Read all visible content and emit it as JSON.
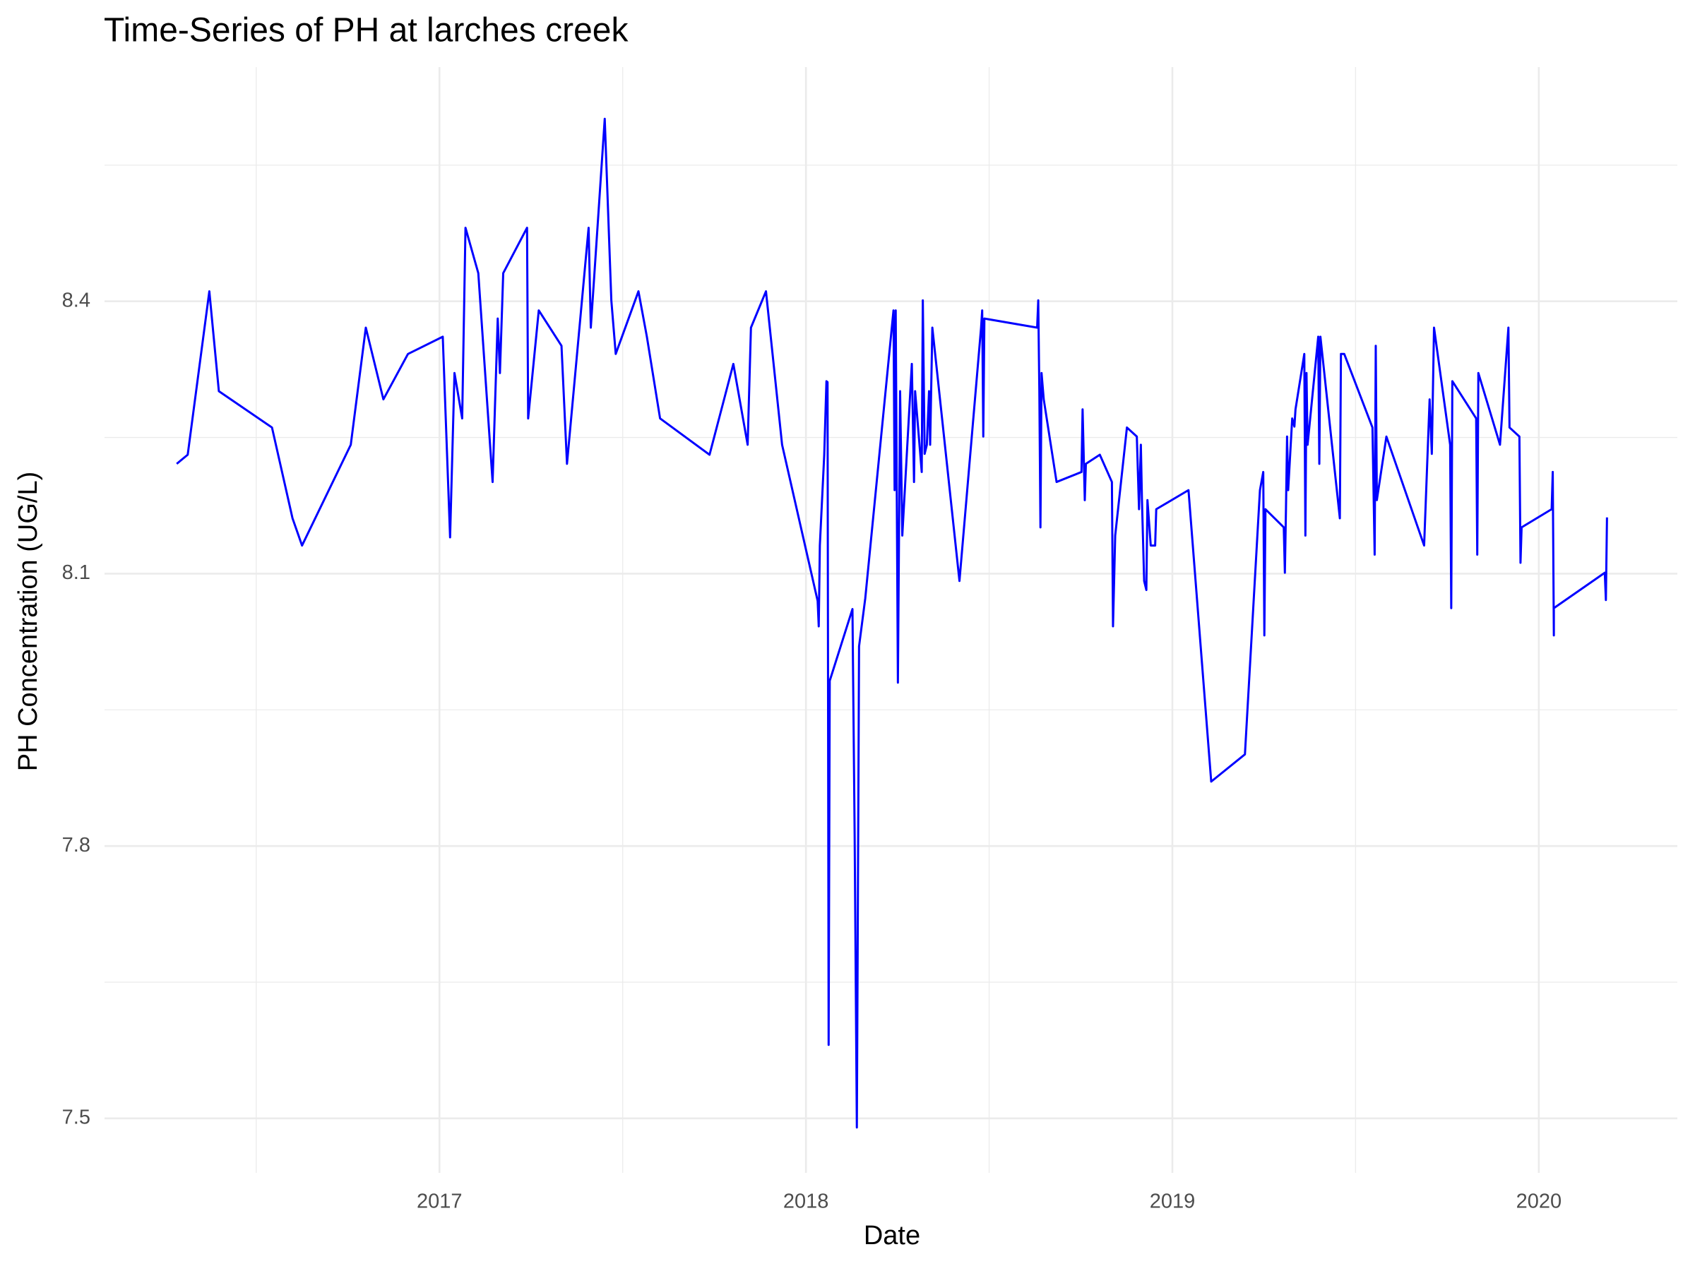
{
  "chart_data": {
    "type": "line",
    "title": "Time-Series of PH at larches creek",
    "x_label": "Date",
    "y_label": "PH Concentration (UG/L)",
    "color": "#0000ff",
    "grid": true,
    "xlim": [
      2016.086,
      2020.378
    ],
    "xticks": [
      2017,
      2018,
      2019,
      2020
    ],
    "ylim": [
      7.44,
      8.658
    ],
    "yticks": [
      7.5,
      7.8,
      8.1,
      8.4
    ],
    "x": [
      2016.283,
      2016.313,
      2016.372,
      2016.398,
      2016.543,
      2016.599,
      2016.625,
      2016.758,
      2016.799,
      2016.847,
      2016.914,
      2017.009,
      2017.029,
      2017.041,
      2017.062,
      2017.071,
      2017.106,
      2017.145,
      2017.159,
      2017.165,
      2017.174,
      2017.239,
      2017.242,
      2017.271,
      2017.333,
      2017.348,
      2017.407,
      2017.413,
      2017.451,
      2017.469,
      2017.481,
      2017.543,
      2017.566,
      2017.602,
      2017.737,
      2017.802,
      2017.841,
      2017.85,
      2017.891,
      2017.935,
      2018.032,
      2018.035,
      2018.038,
      2018.05,
      2018.056,
      2018.059,
      2018.062,
      2018.065,
      2018.127,
      2018.133,
      2018.139,
      2018.145,
      2018.162,
      2018.239,
      2018.242,
      2018.245,
      2018.251,
      2018.257,
      2018.263,
      2018.289,
      2018.295,
      2018.298,
      2018.316,
      2018.319,
      2018.324,
      2018.33,
      2018.336,
      2018.339,
      2018.345,
      2018.419,
      2018.478,
      2018.481,
      2018.484,
      2018.487,
      2018.631,
      2018.634,
      2018.637,
      2018.64,
      2018.643,
      2018.649,
      2018.684,
      2018.752,
      2018.755,
      2018.761,
      2018.764,
      2018.802,
      2018.835,
      2018.838,
      2018.844,
      2018.876,
      2018.903,
      2018.909,
      2018.914,
      2018.917,
      2018.923,
      2018.929,
      2018.932,
      2018.941,
      2018.953,
      2018.956,
      2019.044,
      2019.106,
      2019.198,
      2019.239,
      2019.248,
      2019.251,
      2019.254,
      2019.304,
      2019.307,
      2019.31,
      2019.313,
      2019.316,
      2019.327,
      2019.333,
      2019.336,
      2019.36,
      2019.363,
      2019.366,
      2019.369,
      2019.398,
      2019.401,
      2019.404,
      2019.457,
      2019.46,
      2019.469,
      2019.546,
      2019.552,
      2019.555,
      2019.558,
      2019.584,
      2019.687,
      2019.702,
      2019.708,
      2019.714,
      2019.758,
      2019.761,
      2019.764,
      2019.829,
      2019.832,
      2019.835,
      2019.894,
      2019.917,
      2019.92,
      2019.947,
      2019.95,
      2019.953,
      2020.035,
      2020.038,
      2020.041,
      2020.041,
      2020.18,
      2020.183,
      2020.186
    ],
    "values": [
      8.221,
      8.231,
      8.411,
      8.301,
      8.261,
      8.161,
      8.131,
      8.242,
      8.371,
      8.292,
      8.342,
      8.361,
      8.14,
      8.321,
      8.271,
      8.481,
      8.431,
      8.201,
      8.381,
      8.321,
      8.431,
      8.481,
      8.271,
      8.39,
      8.351,
      8.221,
      8.481,
      8.371,
      8.601,
      8.401,
      8.342,
      8.411,
      8.361,
      8.271,
      8.231,
      8.331,
      8.242,
      8.371,
      8.411,
      8.242,
      8.07,
      8.042,
      8.131,
      8.231,
      8.312,
      8.311,
      7.581,
      7.982,
      8.061,
      7.812,
      7.49,
      8.02,
      8.073,
      8.39,
      8.192,
      8.39,
      7.98,
      8.301,
      8.142,
      8.331,
      8.201,
      8.301,
      8.212,
      8.401,
      8.232,
      8.242,
      8.301,
      8.242,
      8.371,
      8.092,
      8.371,
      8.39,
      8.251,
      8.381,
      8.371,
      8.401,
      8.301,
      8.151,
      8.321,
      8.292,
      8.201,
      8.212,
      8.281,
      8.181,
      8.221,
      8.231,
      8.201,
      8.042,
      8.142,
      8.261,
      8.251,
      8.171,
      8.242,
      8.181,
      8.092,
      8.082,
      8.181,
      8.131,
      8.131,
      8.171,
      8.192,
      7.871,
      7.901,
      8.192,
      8.212,
      8.032,
      8.171,
      8.151,
      8.101,
      8.171,
      8.251,
      8.192,
      8.271,
      8.262,
      8.281,
      8.342,
      8.142,
      8.321,
      8.242,
      8.361,
      8.221,
      8.361,
      8.161,
      8.342,
      8.342,
      8.261,
      8.121,
      8.351,
      8.181,
      8.251,
      8.131,
      8.292,
      8.232,
      8.371,
      8.242,
      8.062,
      8.312,
      8.271,
      8.121,
      8.321,
      8.242,
      8.371,
      8.261,
      8.251,
      8.112,
      8.151,
      8.171,
      8.212,
      8.032,
      8.062,
      8.101,
      8.071,
      8.162
    ]
  }
}
